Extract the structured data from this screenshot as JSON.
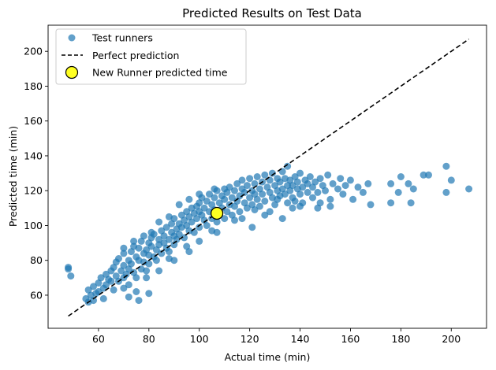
{
  "chart_data": {
    "type": "scatter",
    "title": "Predicted Results on Test Data",
    "xlabel": "Actual time (min)",
    "ylabel": "Predicted time (min)",
    "xlim": [
      40,
      214
    ],
    "ylim": [
      41,
      215
    ],
    "xticks": [
      60,
      80,
      100,
      120,
      140,
      160,
      180,
      200
    ],
    "yticks": [
      60,
      80,
      100,
      120,
      140,
      160,
      180,
      200
    ],
    "grid": false,
    "legend_position": "top-left",
    "legend": [
      "Test runners",
      "Perfect prediction",
      "New Runner predicted time"
    ],
    "series": [
      {
        "name": "Test runners",
        "kind": "scatter",
        "color": "#1f77b4",
        "alpha": 0.7,
        "points": [
          [
            48,
            76
          ],
          [
            48,
            75
          ],
          [
            49,
            71
          ],
          [
            55,
            58
          ],
          [
            56,
            56
          ],
          [
            57,
            60
          ],
          [
            56,
            63
          ],
          [
            58,
            57
          ],
          [
            58,
            65
          ],
          [
            59,
            61
          ],
          [
            60,
            67
          ],
          [
            60,
            62
          ],
          [
            61,
            70
          ],
          [
            62,
            58
          ],
          [
            62,
            64
          ],
          [
            63,
            72
          ],
          [
            63,
            66
          ],
          [
            64,
            69
          ],
          [
            65,
            74
          ],
          [
            65,
            68
          ],
          [
            66,
            63
          ],
          [
            66,
            76
          ],
          [
            67,
            71
          ],
          [
            67,
            79
          ],
          [
            68,
            68
          ],
          [
            68,
            81
          ],
          [
            69,
            74
          ],
          [
            70,
            77
          ],
          [
            70,
            70
          ],
          [
            70,
            84
          ],
          [
            71,
            72
          ],
          [
            72,
            80
          ],
          [
            72,
            75
          ],
          [
            72,
            66
          ],
          [
            73,
            85
          ],
          [
            73,
            78
          ],
          [
            74,
            73
          ],
          [
            74,
            88
          ],
          [
            75,
            82
          ],
          [
            75,
            70
          ],
          [
            76,
            80
          ],
          [
            76,
            87
          ],
          [
            77,
            75
          ],
          [
            77,
            91
          ],
          [
            78,
            84
          ],
          [
            78,
            79
          ],
          [
            79,
            86
          ],
          [
            79,
            74
          ],
          [
            80,
            90
          ],
          [
            80,
            83
          ],
          [
            80,
            78
          ],
          [
            81,
            93
          ],
          [
            81,
            88
          ],
          [
            82,
            82
          ],
          [
            82,
            95
          ],
          [
            83,
            86
          ],
          [
            83,
            80
          ],
          [
            84,
            92
          ],
          [
            84,
            89
          ],
          [
            85,
            84
          ],
          [
            85,
            97
          ],
          [
            86,
            90
          ],
          [
            86,
            94
          ],
          [
            87,
            87
          ],
          [
            87,
            99
          ],
          [
            88,
            92
          ],
          [
            88,
            85
          ],
          [
            89,
            96
          ],
          [
            89,
            101
          ],
          [
            90,
            94
          ],
          [
            90,
            89
          ],
          [
            90,
            104
          ],
          [
            91,
            98
          ],
          [
            91,
            92
          ],
          [
            92,
            101
          ],
          [
            92,
            95
          ],
          [
            93,
            106
          ],
          [
            93,
            99
          ],
          [
            94,
            103
          ],
          [
            94,
            93
          ],
          [
            95,
            108
          ],
          [
            95,
            100
          ],
          [
            96,
            97
          ],
          [
            96,
            105
          ],
          [
            97,
            110
          ],
          [
            97,
            102
          ],
          [
            98,
            96
          ],
          [
            98,
            107
          ],
          [
            99,
            111
          ],
          [
            99,
            104
          ],
          [
            100,
            99
          ],
          [
            100,
            113
          ],
          [
            100,
            108
          ],
          [
            101,
            106
          ],
          [
            101,
            116
          ],
          [
            102,
            103
          ],
          [
            102,
            110
          ],
          [
            103,
            114
          ],
          [
            103,
            100
          ],
          [
            104,
            108
          ],
          [
            104,
            118
          ],
          [
            105,
            112
          ],
          [
            105,
            104
          ],
          [
            106,
            116
          ],
          [
            106,
            109
          ],
          [
            107,
            102
          ],
          [
            107,
            120
          ],
          [
            108,
            113
          ],
          [
            108,
            106
          ],
          [
            109,
            117
          ],
          [
            109,
            110
          ],
          [
            110,
            121
          ],
          [
            110,
            104
          ],
          [
            110,
            115
          ],
          [
            111,
            119
          ],
          [
            111,
            108
          ],
          [
            112,
            112
          ],
          [
            112,
            122
          ],
          [
            113,
            116
          ],
          [
            113,
            106
          ],
          [
            114,
            120
          ],
          [
            114,
            111
          ],
          [
            115,
            124
          ],
          [
            115,
            114
          ],
          [
            116,
            117
          ],
          [
            116,
            108
          ],
          [
            117,
            121
          ],
          [
            117,
            126
          ],
          [
            118,
            113
          ],
          [
            118,
            119
          ],
          [
            119,
            123
          ],
          [
            119,
            110
          ],
          [
            120,
            116
          ],
          [
            120,
            127
          ],
          [
            121,
            120
          ],
          [
            121,
            112
          ],
          [
            122,
            124
          ],
          [
            122,
            118
          ],
          [
            123,
            128
          ],
          [
            123,
            115
          ],
          [
            124,
            121
          ],
          [
            124,
            111
          ],
          [
            125,
            125
          ],
          [
            125,
            118
          ],
          [
            126,
            129
          ],
          [
            126,
            114
          ],
          [
            127,
            122
          ],
          [
            128,
            119
          ],
          [
            128,
            126
          ],
          [
            129,
            116
          ],
          [
            129,
            130
          ],
          [
            130,
            123
          ],
          [
            130,
            112
          ],
          [
            131,
            127
          ],
          [
            131,
            120
          ],
          [
            132,
            117
          ],
          [
            132,
            125
          ],
          [
            133,
            131
          ],
          [
            133,
            121
          ],
          [
            134,
            118
          ],
          [
            134,
            127
          ],
          [
            135,
            123
          ],
          [
            135,
            134
          ],
          [
            136,
            120
          ],
          [
            136,
            126
          ],
          [
            137,
            116
          ],
          [
            137,
            123
          ],
          [
            138,
            128
          ],
          [
            138,
            114
          ],
          [
            139,
            121
          ],
          [
            139,
            125
          ],
          [
            140,
            118
          ],
          [
            140,
            130
          ],
          [
            141,
            122
          ],
          [
            141,
            113
          ],
          [
            142,
            126
          ],
          [
            143,
            119
          ],
          [
            143,
            124
          ],
          [
            144,
            128
          ],
          [
            145,
            116
          ],
          [
            145,
            122
          ],
          [
            146,
            125
          ],
          [
            147,
            119
          ],
          [
            148,
            127
          ],
          [
            148,
            113
          ],
          [
            149,
            123
          ],
          [
            150,
            120
          ],
          [
            151,
            129
          ],
          [
            152,
            115
          ],
          [
            153,
            124
          ],
          [
            155,
            121
          ],
          [
            156,
            127
          ],
          [
            157,
            118
          ],
          [
            158,
            123
          ],
          [
            160,
            126
          ],
          [
            161,
            115
          ],
          [
            163,
            122
          ],
          [
            165,
            119
          ],
          [
            167,
            124
          ],
          [
            168,
            112
          ],
          [
            176,
            124
          ],
          [
            176,
            113
          ],
          [
            179,
            119
          ],
          [
            180,
            128
          ],
          [
            183,
            124
          ],
          [
            184,
            113
          ],
          [
            185,
            121
          ],
          [
            189,
            129
          ],
          [
            191,
            129
          ],
          [
            198,
            134
          ],
          [
            198,
            119
          ],
          [
            200,
            126
          ],
          [
            207,
            121
          ],
          [
            135,
            113
          ],
          [
            131,
            115
          ],
          [
            128,
            108
          ],
          [
            122,
            109
          ],
          [
            117,
            104
          ],
          [
            137,
            110
          ],
          [
            140,
            111
          ],
          [
            121,
            99
          ],
          [
            105,
            97
          ],
          [
            95,
            88
          ],
          [
            88,
            81
          ],
          [
            79,
            70
          ],
          [
            75,
            62
          ],
          [
            70,
            64
          ],
          [
            80,
            61
          ],
          [
            76,
            57
          ],
          [
            72,
            59
          ],
          [
            84,
            74
          ],
          [
            90,
            80
          ],
          [
            96,
            85
          ],
          [
            100,
            91
          ],
          [
            107,
            96
          ],
          [
            114,
            103
          ],
          [
            126,
            106
          ],
          [
            133,
            104
          ],
          [
            147,
            110
          ],
          [
            152,
            111
          ],
          [
            106,
            121
          ],
          [
            100,
            118
          ],
          [
            96,
            115
          ],
          [
            92,
            112
          ],
          [
            88,
            105
          ],
          [
            84,
            102
          ],
          [
            81,
            96
          ],
          [
            78,
            94
          ],
          [
            74,
            91
          ],
          [
            70,
            87
          ]
        ]
      },
      {
        "name": "Perfect prediction",
        "kind": "line",
        "color": "#000000",
        "dashed": true,
        "x": [
          48,
          207
        ],
        "y": [
          48,
          207
        ]
      },
      {
        "name": "New Runner predicted time",
        "kind": "marker",
        "color": "#ffff22",
        "edge_color": "#000000",
        "x": 107,
        "y": 107
      }
    ]
  }
}
